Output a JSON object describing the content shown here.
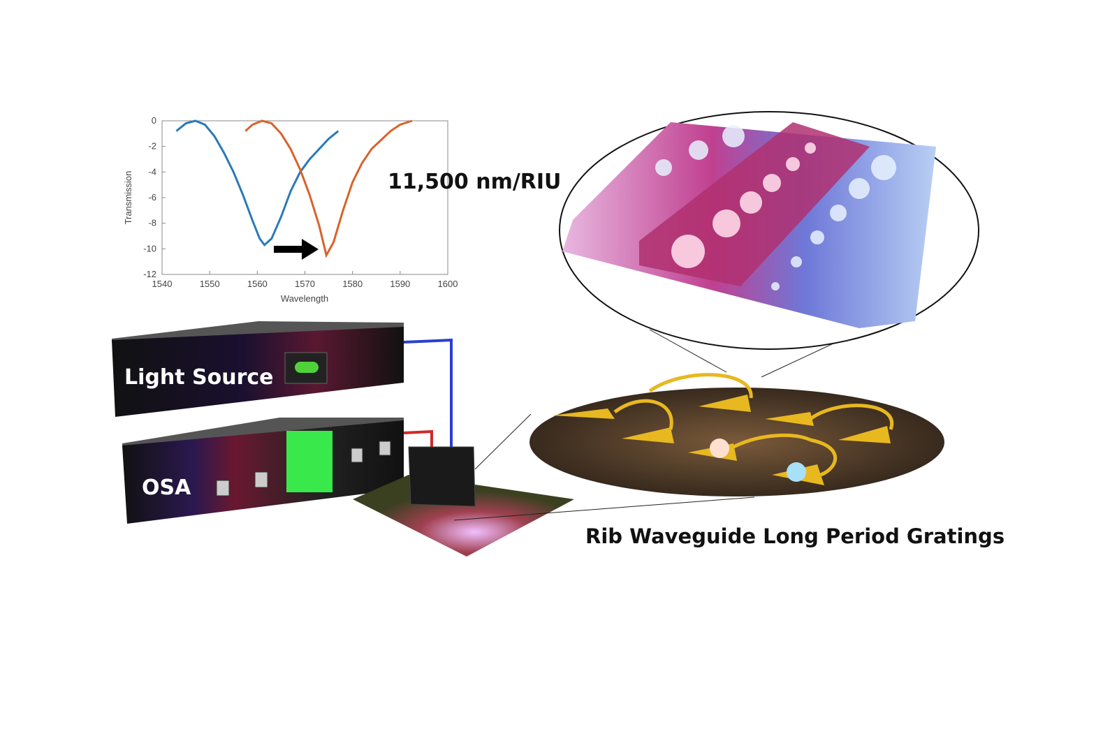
{
  "chart_data": {
    "type": "line",
    "xlabel": "Wavelength",
    "ylabel": "Transmission",
    "xlim": [
      1540,
      1600
    ],
    "xticks": [
      1540,
      1550,
      1560,
      1570,
      1580,
      1590,
      1600
    ],
    "ylim": [
      -12,
      0
    ],
    "yticks": [
      0,
      -2,
      -4,
      -6,
      -8,
      -10,
      -12
    ],
    "series": [
      {
        "color": "#2a7ab8",
        "x": [
          1543,
          1545,
          1547,
          1549,
          1551,
          1553,
          1555,
          1557,
          1559,
          1560.5,
          1561.5,
          1563,
          1565,
          1567,
          1569,
          1571,
          1573,
          1575,
          1577
        ],
        "values": [
          -0.8,
          -0.2,
          0,
          -0.3,
          -1.2,
          -2.5,
          -4,
          -5.8,
          -7.8,
          -9.2,
          -9.7,
          -9.2,
          -7.5,
          -5.5,
          -4,
          -3,
          -2.2,
          -1.4,
          -0.8
        ]
      },
      {
        "color": "#d9622b",
        "x": [
          1557.5,
          1559,
          1561,
          1563,
          1565,
          1567,
          1569,
          1571,
          1573,
          1574.5,
          1576,
          1578,
          1580,
          1582,
          1584,
          1586,
          1588,
          1590,
          1592.5
        ],
        "values": [
          -0.8,
          -0.3,
          0,
          -0.2,
          -1,
          -2.2,
          -3.8,
          -5.8,
          -8.2,
          -10.5,
          -9.5,
          -7,
          -4.8,
          -3.3,
          -2.2,
          -1.5,
          -0.8,
          -0.3,
          0
        ]
      }
    ]
  },
  "labels": {
    "sensitivity": "11,500 nm/RIU",
    "light_source": "Light Source",
    "osa": "OSA",
    "caption": "Rib Waveguide Long Period Gratings"
  }
}
